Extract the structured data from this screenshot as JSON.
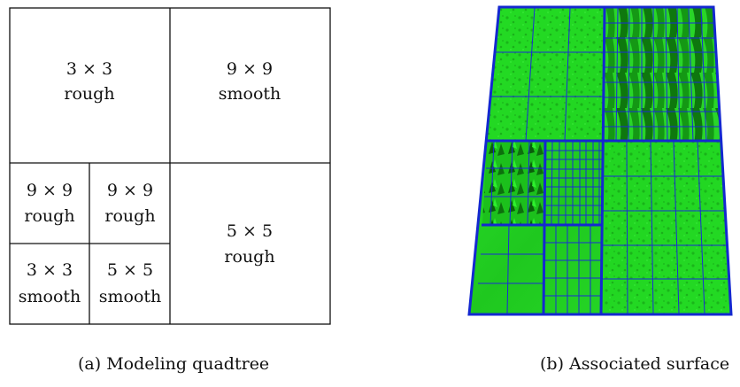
{
  "figure": {
    "quadtree": {
      "cells": [
        {
          "id": "nw",
          "size": "3 × 3",
          "surface": "rough"
        },
        {
          "id": "ne",
          "size": "9 × 9",
          "surface": "smooth"
        },
        {
          "id": "sw-nw",
          "size": "9 × 9",
          "surface": "rough"
        },
        {
          "id": "sw-ne",
          "size": "9 × 9",
          "surface": "rough"
        },
        {
          "id": "sw-sw",
          "size": "3 × 3",
          "surface": "smooth"
        },
        {
          "id": "sw-se",
          "size": "5 × 5",
          "surface": "smooth"
        },
        {
          "id": "se",
          "size": "5 × 5",
          "surface": "rough"
        }
      ]
    },
    "surface_colors": {
      "terrain": "#22dd22",
      "terrain_dark": "#0f7a0f",
      "grid": "#1a2bd6",
      "border": "#1428d0"
    },
    "captions": {
      "a": "(a) Modeling quadtree",
      "b": "(b) Associated surface"
    }
  }
}
